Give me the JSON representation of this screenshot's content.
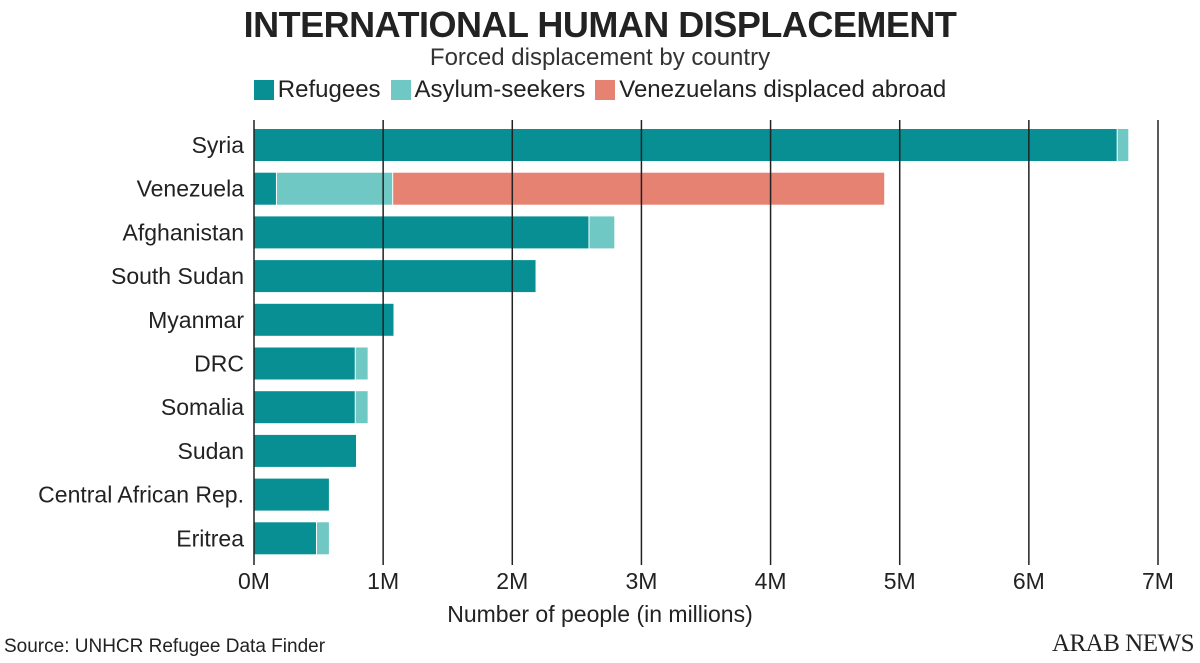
{
  "chart_data": {
    "type": "bar",
    "orientation": "horizontal",
    "stacked": true,
    "title": "INTERNATIONAL HUMAN DISPLACEMENT",
    "subtitle": "Forced displacement by country",
    "xlabel": "Number of people (in millions)",
    "ylabel": "",
    "xlim": [
      0,
      7
    ],
    "xticks": [
      "0M",
      "1M",
      "2M",
      "3M",
      "4M",
      "5M",
      "6M",
      "7M"
    ],
    "grid": true,
    "legend_position": "top-center",
    "categories": [
      "Syria",
      "Venezuela",
      "Afghanistan",
      "South Sudan",
      "Myanmar",
      "DRC",
      "Somalia",
      "Sudan",
      "Central African Rep.",
      "Eritrea"
    ],
    "series": [
      {
        "name": "Refugees",
        "color": "#078f93",
        "values": [
          6.68,
          0.17,
          2.59,
          2.18,
          1.08,
          0.78,
          0.78,
          0.79,
          0.58,
          0.48
        ]
      },
      {
        "name": "Asylum-seekers",
        "color": "#6fc8c4",
        "values": [
          0.09,
          0.9,
          0.2,
          0,
          0,
          0.1,
          0.1,
          0,
          0,
          0.1
        ]
      },
      {
        "name": "Venezuelans displaced abroad",
        "color": "#e68272",
        "values": [
          0,
          3.81,
          0,
          0,
          0,
          0,
          0,
          0,
          0,
          0
        ]
      }
    ]
  },
  "footer": {
    "source": "Source: UNHCR Refugee Data Finder",
    "logo": "ARAB NEWS"
  }
}
